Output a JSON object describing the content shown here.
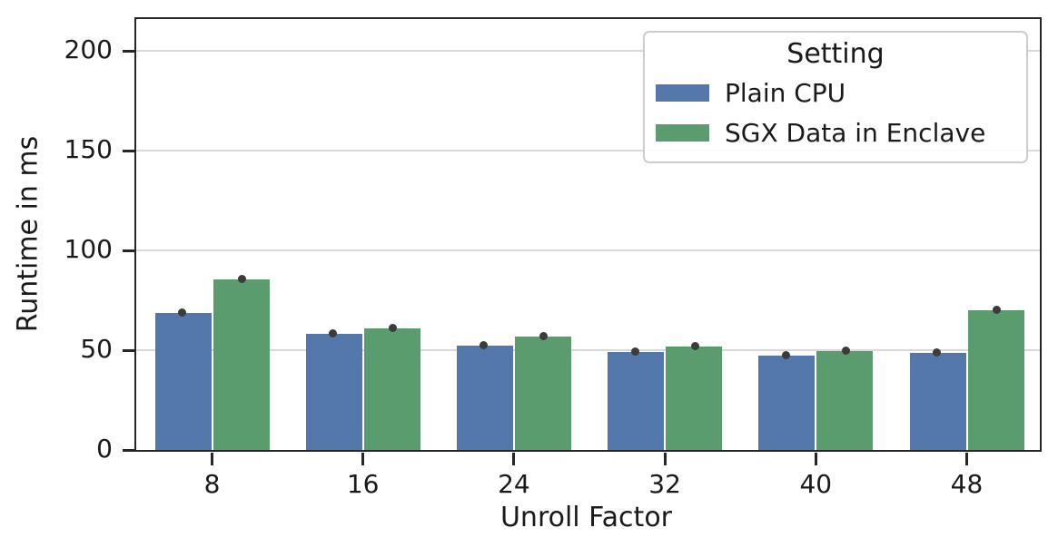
{
  "chart_data": {
    "type": "bar",
    "title": "",
    "xlabel": "Unroll Factor",
    "ylabel": "Runtime in ms",
    "categories": [
      "8",
      "16",
      "24",
      "32",
      "40",
      "48"
    ],
    "series": [
      {
        "name": "Plain CPU",
        "color": "#5377AB",
        "values": [
          68.5,
          58,
          52.5,
          49,
          47.5,
          48.5
        ]
      },
      {
        "name": "SGX Data in Enclave",
        "color": "#5A9C6E",
        "values": [
          85.5,
          61,
          57,
          52,
          49.5,
          70
        ]
      }
    ],
    "mean_markers": {
      "shown": true,
      "color": "#3B3B3B"
    },
    "ylim": [
      0,
      216
    ],
    "yticks": [
      0,
      50,
      100,
      150,
      200
    ],
    "grid": "horizontal",
    "legend": {
      "title": "Setting",
      "position": "upper-right",
      "entries": [
        "Plain CPU",
        "SGX Data in Enclave"
      ]
    }
  },
  "colors": {
    "background": "#FFFFFF",
    "spine": "#262626",
    "gridline": "#D9D9D9",
    "text": "#1A1A1A",
    "legend_border": "#CCCCCC",
    "marker": "#3B3B3B"
  }
}
